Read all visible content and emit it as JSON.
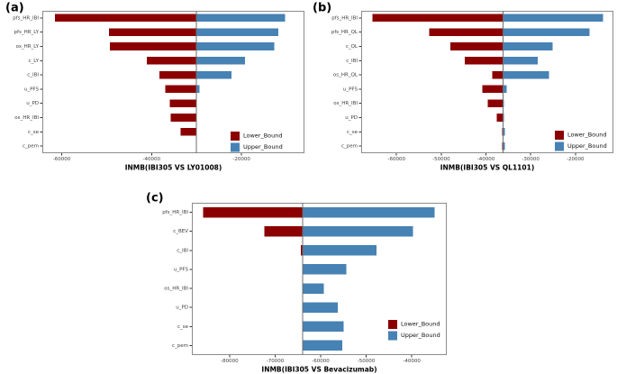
{
  "figure": {
    "colors": {
      "lower_bound": "#8B0000",
      "upper_bound": "#4682B4",
      "baseline_line": "#6e6e6e",
      "panel_border": "#8c8c8c",
      "axis_text": "#404040",
      "background": "#ffffff"
    },
    "legend": {
      "lower_label": "Lower_Bound",
      "upper_label": "Upper_Bound"
    }
  },
  "chart_data": [
    {
      "type": "bar",
      "orientation": "horizontal-tornado",
      "panel_label": "(a)",
      "xlabel": "INMB(IBI305 VS LY01008)",
      "xlim": [
        -64300,
        -6000
      ],
      "xticks": [
        -60000,
        -40000,
        -20000
      ],
      "baseline": -30000,
      "grid": false,
      "legend_position": "bottom-right-inside",
      "categories": [
        "pfs_HR_IBI",
        "pfs_HR_LY",
        "os_HR_LY",
        "c_LY",
        "c_IBI",
        "u_PFS",
        "u_PD",
        "os_HR_IBI",
        "c_se",
        "c_pem"
      ],
      "series": [
        {
          "name": "Lower_Bound",
          "values": [
            -61500,
            -49500,
            -49300,
            -41100,
            -38300,
            -37000,
            -36000,
            -35800,
            -33500,
            -30100
          ]
        },
        {
          "name": "Upper_Bound",
          "values": [
            -10300,
            -11800,
            -12700,
            -19200,
            -22200,
            -29300,
            -29900,
            -30000,
            -30000,
            -29900
          ]
        }
      ]
    },
    {
      "type": "bar",
      "orientation": "horizontal-tornado",
      "panel_label": "(b)",
      "xlabel": "INMB(IBI305 VS QL1101)",
      "xlim": [
        -67900,
        -11500
      ],
      "xticks": [
        -60000,
        -50000,
        -40000,
        -30000,
        -20000
      ],
      "baseline": -36200,
      "grid": false,
      "legend_position": "bottom-right-inside",
      "categories": [
        "pfs_HR_IBI",
        "pfs_HR_QL",
        "c_QL",
        "c_IBI",
        "os_HR_QL",
        "u_PFS",
        "os_HR_IBI",
        "u_PD",
        "c_se",
        "c_pem"
      ],
      "series": [
        {
          "name": "Lower_Bound",
          "values": [
            -65400,
            -52700,
            -48000,
            -44700,
            -38600,
            -40800,
            -39600,
            -37600,
            -36400,
            -36400
          ]
        },
        {
          "name": "Upper_Bound",
          "values": [
            -13800,
            -16800,
            -25100,
            -28400,
            -25900,
            -35400,
            -36000,
            -36000,
            -35800,
            -35800
          ]
        }
      ]
    },
    {
      "type": "bar",
      "orientation": "horizontal-tornado",
      "panel_label": "(c)",
      "xlabel": "INMB(IBI305 VS Bevacizumab)",
      "xlim": [
        -88300,
        -32300
      ],
      "xticks": [
        -80000,
        -70000,
        -60000,
        -50000,
        -40000
      ],
      "baseline": -64000,
      "grid": false,
      "legend_position": "bottom-right-inside",
      "categories": [
        "pfs_HR_IBI",
        "c_BEV",
        "c_IBI",
        "u_PFS",
        "os_HR_IBI",
        "u_PD",
        "c_se",
        "c_pem"
      ],
      "series": [
        {
          "name": "Lower_Bound",
          "values": [
            -85800,
            -72400,
            -64400,
            -64000,
            -64000,
            -64000,
            -64000,
            -64000
          ]
        },
        {
          "name": "Upper_Bound",
          "values": [
            -35000,
            -39700,
            -47700,
            -54400,
            -59300,
            -56200,
            -55000,
            -55300
          ]
        }
      ]
    }
  ]
}
